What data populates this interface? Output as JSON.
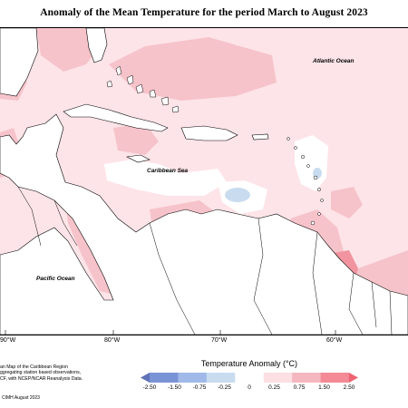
{
  "title": "Anomaly of the Mean Temperature for the period March to August 2023",
  "ocean_labels": {
    "atlantic": "Atlantic Ocean",
    "caribbean": "Caribbean Sea",
    "pacific": "Pacific Ocean"
  },
  "longitude_ticks": [
    "90°W",
    "80°W",
    "70°W",
    "60°W"
  ],
  "notes": [
    "an Map of the Caribbean Region",
    "ggregating station based observations,",
    "CF, with NCEP/NCAR Reanalysis Data."
  ],
  "credit": "CIMH August 2023",
  "legend": {
    "title": "Temperature Anomaly (°C)",
    "labels": [
      "-2.50",
      "-1.50",
      "-0.75",
      "-0.25",
      "0",
      "0.25",
      "0.75",
      "1.50",
      "2.50"
    ],
    "colors": [
      "#5e72b8",
      "#7a93d6",
      "#a0b9e8",
      "#c9dcef",
      "#ffffff",
      "#fbdfe3",
      "#f5b7bf",
      "#f38a96",
      "#ef6373"
    ]
  },
  "colors": {
    "land": "#ffffff",
    "anomaly_low": "#fde4e8",
    "anomaly_mid": "#f6c3ca",
    "anomaly_high": "#f1949f",
    "anomaly_neutral": "#ffffff",
    "anomaly_cool": "#c9dcef"
  }
}
